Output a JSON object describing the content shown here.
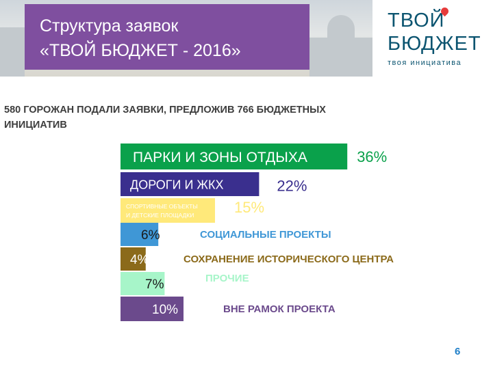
{
  "slide": {
    "title_line1": "Структура заявок",
    "title_line2": "«ТВОЙ БЮДЖЕТ - 2016»",
    "logo_line1": "ТВОЙ",
    "logo_line2": "БЮДЖЕТ",
    "logo_sub": "твоя инициатива",
    "subtitle_line1": "580 ГОРОЖАН ПОДАЛИ ЗАЯВКИ, ПРЕДЛОЖИВ 766 БЮДЖЕТНЫХ",
    "subtitle_line2": "ИНИЦИАТИВ",
    "page_number": "6"
  },
  "chart_data": {
    "type": "bar",
    "orientation": "horizontal",
    "categories": [
      "ПАРКИ И ЗОНЫ ОТДЫХА",
      "ДОРОГИ И ЖКХ",
      "СПОРТИВНЫЕ ОБЪЕКТЫ И ДЕТСКИЕ ПЛОЩАДКИ",
      "СОЦИАЛЬНЫЕ ПРОЕКТЫ",
      "СОХРАНЕНИЕ ИСТОРИЧЕСКОГО ЦЕНТРА",
      "ПРОЧИЕ",
      "ВНЕ РАМОК ПРОЕКТА"
    ],
    "values": [
      36,
      22,
      15,
      6,
      4,
      7,
      10
    ],
    "value_labels": [
      "36%",
      "22%",
      "15%",
      "6%",
      "4%",
      "7%",
      "10%"
    ],
    "sport_label_line1": "СПОРТИВНЫЕ ОБЪЕКТЫ",
    "sport_label_line2": "И ДЕТСКИЕ ПЛОЩАДКИ",
    "colors": [
      "#0aa14b",
      "#3a2f8e",
      "#ffe97a",
      "#3f97d6",
      "#8b6a1a",
      "#a7f5c9",
      "#6b4a8c"
    ],
    "label_colors": [
      "#0aa14b",
      "#3a2f8e",
      "#ffe97a",
      "#3f97d6",
      "#8b6a1a",
      "#a7f5c9",
      "#6b4a8c"
    ],
    "unit": "%"
  }
}
